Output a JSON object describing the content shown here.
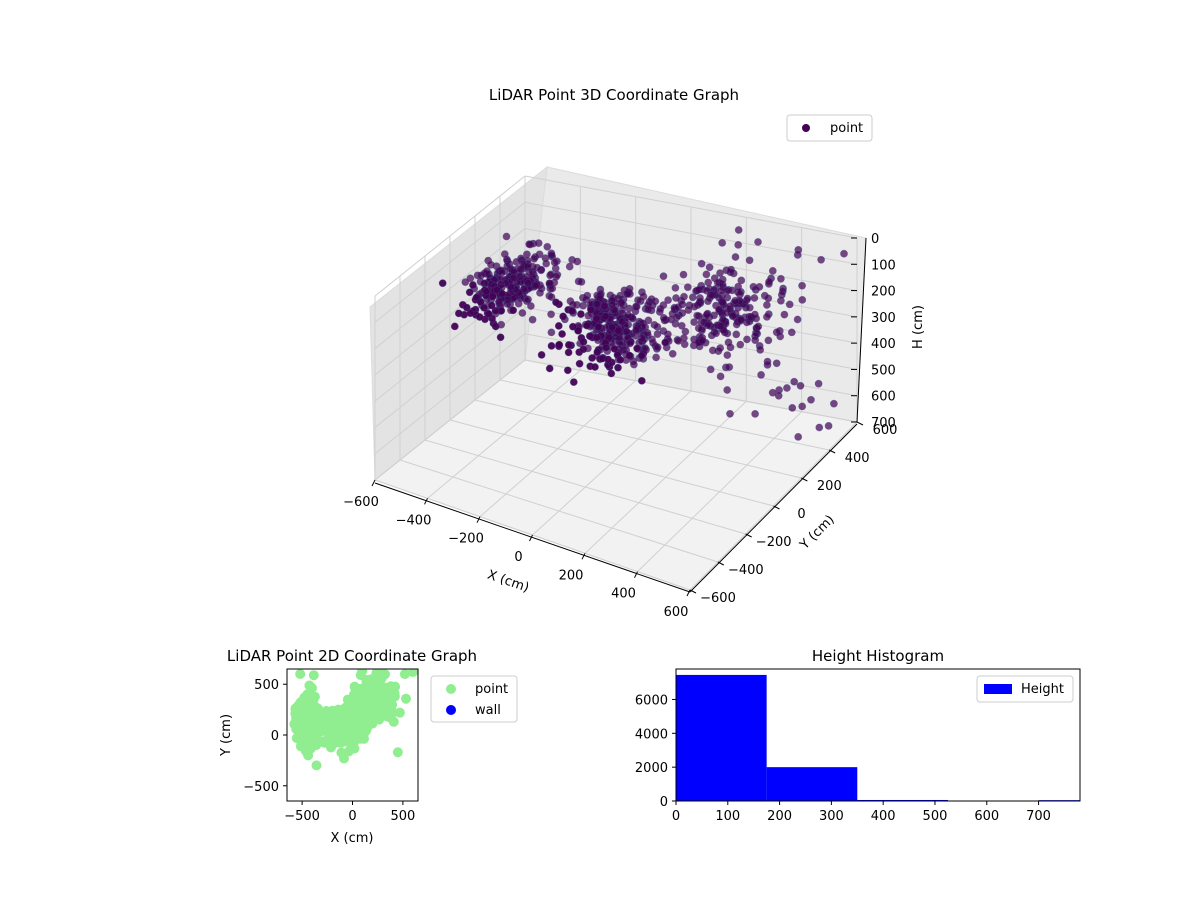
{
  "chart_data": [
    {
      "type": "scatter3d",
      "title": "LiDAR Point 3D Coordinate Graph",
      "xlabel": "X (cm)",
      "ylabel": "Y (cm)",
      "zlabel": "H (cm)",
      "xlim": [
        -600,
        600
      ],
      "ylim": [
        -600,
        600
      ],
      "zlim": [
        0,
        700
      ],
      "z_inverted": true,
      "x_ticks": [
        "−600",
        "−400",
        "−200",
        "0",
        "200",
        "400",
        "600"
      ],
      "y_ticks": [
        "−600",
        "−400",
        "−200",
        "0",
        "200",
        "400",
        "600"
      ],
      "z_ticks": [
        "0",
        "100",
        "200",
        "300",
        "400",
        "500",
        "600",
        "700"
      ],
      "legend": "top-right",
      "grid": true,
      "series": [
        {
          "name": "point",
          "color": "#440154",
          "clusters": [
            {
              "xy_center": [
                -450,
                150
              ],
              "xy_spread": [
                120,
                300
              ],
              "h_range": [
                150,
                260
              ],
              "count": 260
            },
            {
              "xy_center": [
                -50,
                80
              ],
              "xy_spread": [
                200,
                200
              ],
              "h_range": [
                120,
                330
              ],
              "count": 320
            },
            {
              "xy_center": [
                220,
                350
              ],
              "xy_spread": [
                220,
                250
              ],
              "h_range": [
                150,
                330
              ],
              "count": 200
            },
            {
              "xy_center": [
                350,
                450
              ],
              "xy_spread": [
                250,
                150
              ],
              "h_range": [
                0,
                700
              ],
              "count": 55
            }
          ]
        }
      ]
    },
    {
      "type": "scatter",
      "title": "LiDAR Point 2D Coordinate Graph",
      "xlabel": "X (cm)",
      "ylabel": "Y (cm)",
      "xlim": [
        -650,
        650
      ],
      "ylim": [
        -650,
        650
      ],
      "x_ticks": [
        "−500",
        "0",
        "500"
      ],
      "y_ticks": [
        "−500",
        "0",
        "500"
      ],
      "legend": "outside-right",
      "series": [
        {
          "name": "point",
          "color": "#90ee90",
          "clusters": [
            {
              "xy_center": [
                -450,
                150
              ],
              "xy_spread": [
                120,
                300
              ],
              "count": 200
            },
            {
              "xy_center": [
                -50,
                80
              ],
              "xy_spread": [
                220,
                220
              ],
              "count": 260
            },
            {
              "xy_center": [
                220,
                350
              ],
              "xy_spread": [
                220,
                250
              ],
              "count": 160
            }
          ],
          "outliers": [
            [
              450,
              -170
            ],
            [
              470,
              220
            ],
            [
              520,
              600
            ],
            [
              600,
              620
            ],
            [
              380,
              480
            ],
            [
              420,
              380
            ]
          ]
        },
        {
          "name": "wall",
          "color": "#0000ff",
          "clusters": [],
          "outliers": []
        }
      ]
    },
    {
      "type": "bar",
      "title": "Height Histogram",
      "xlabel": "",
      "ylabel": "",
      "xlim": [
        0,
        780
      ],
      "ylim": [
        0,
        7800
      ],
      "x_ticks": [
        0,
        100,
        200,
        300,
        400,
        500,
        600,
        700
      ],
      "y_ticks": [
        0,
        2000,
        4000,
        6000
      ],
      "bins": [
        0,
        175,
        350,
        525,
        700,
        875
      ],
      "counts": [
        7450,
        2000,
        60,
        0,
        50
      ],
      "color": "#0000ff",
      "legend": "top-right",
      "series": [
        {
          "name": "Height"
        }
      ]
    }
  ]
}
